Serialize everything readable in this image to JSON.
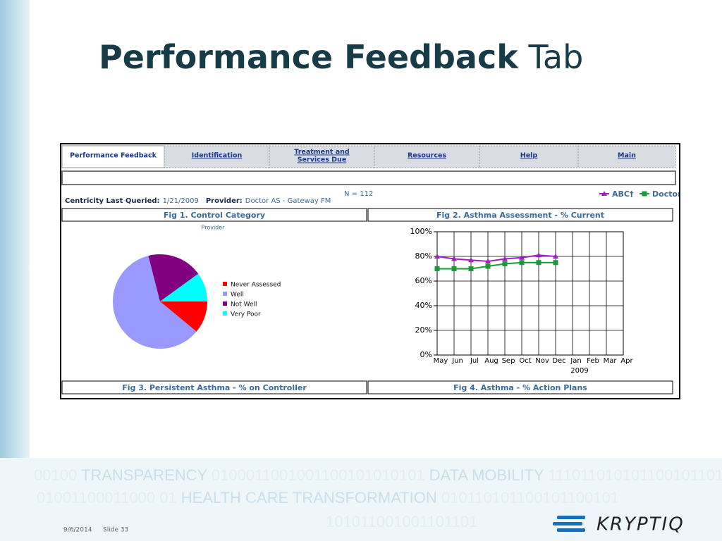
{
  "slide": {
    "title_bold": "Performance Feedback",
    "title_rest": "Tab",
    "footer_date": "9/6/2014",
    "footer_slide": "Slide 33",
    "logo": "KRYPTIQ",
    "binary_lines": [
      [
        "00100",
        "TRANSPARENCY",
        "0100011001001100101010101",
        "DATA MOBILITY",
        "11101101010110010110110"
      ],
      [
        "01001100011000",
        "01",
        "HEALTH CARE TRANSFORMATION",
        "010110101100101100101"
      ],
      [
        "101011001001101101"
      ]
    ]
  },
  "app": {
    "tabs": [
      [
        "Performance Feedback"
      ],
      [
        "Identification"
      ],
      [
        "Treatment and",
        "Services Due"
      ],
      [
        "Resources"
      ],
      [
        "Help"
      ],
      [
        "Main"
      ]
    ],
    "last_queried_label": "Centricity Last Queried:",
    "last_queried": "1/21/2009",
    "provider_label": "Provider:",
    "provider": "Doctor AS - Gateway FM",
    "n": "N = 112",
    "fig_titles": [
      "Fig 1. Control Category",
      "Fig 2. Asthma Assessment - % Current",
      "Fig 3. Persistent Asthma - % on Controller",
      "Fig 4. Asthma - % Action Plans"
    ]
  },
  "chart_data": [
    {
      "type": "pie",
      "subtitle": "Provider",
      "categories": [
        "Never Assessed",
        "Well",
        "Not Well",
        "Very Poor"
      ],
      "values": [
        11,
        60,
        19,
        10
      ],
      "colors": [
        "#ff0000",
        "#9999ff",
        "#800080",
        "#00ffff"
      ]
    },
    {
      "type": "line",
      "categories": [
        "May",
        "Jun",
        "Jul",
        "Aug",
        "Sep",
        "Oct",
        "Nov",
        "Dec",
        "Jan",
        "Feb",
        "Mar",
        "Apr"
      ],
      "x_sublabel": "2009",
      "series": [
        {
          "name": "ABC†",
          "color": "#a020c0",
          "values": [
            80,
            78,
            77,
            76,
            78,
            79,
            81,
            80,
            null,
            null,
            null,
            null
          ]
        },
        {
          "name": "Doctor",
          "color": "#1a9a3a",
          "values": [
            70,
            70,
            70,
            72,
            74,
            75,
            75,
            75,
            null,
            null,
            null,
            null
          ]
        }
      ],
      "ylim": [
        0,
        100
      ],
      "yticks": [
        {
          "value": 0,
          "label": "0%"
        },
        {
          "value": 20,
          "label": "20%"
        },
        {
          "value": 40,
          "label": "40%"
        },
        {
          "value": 60,
          "label": "60%"
        },
        {
          "value": 80,
          "label": "80%"
        },
        {
          "value": 100,
          "label": "100%"
        }
      ],
      "grid": true,
      "legend": "top-right"
    }
  ]
}
